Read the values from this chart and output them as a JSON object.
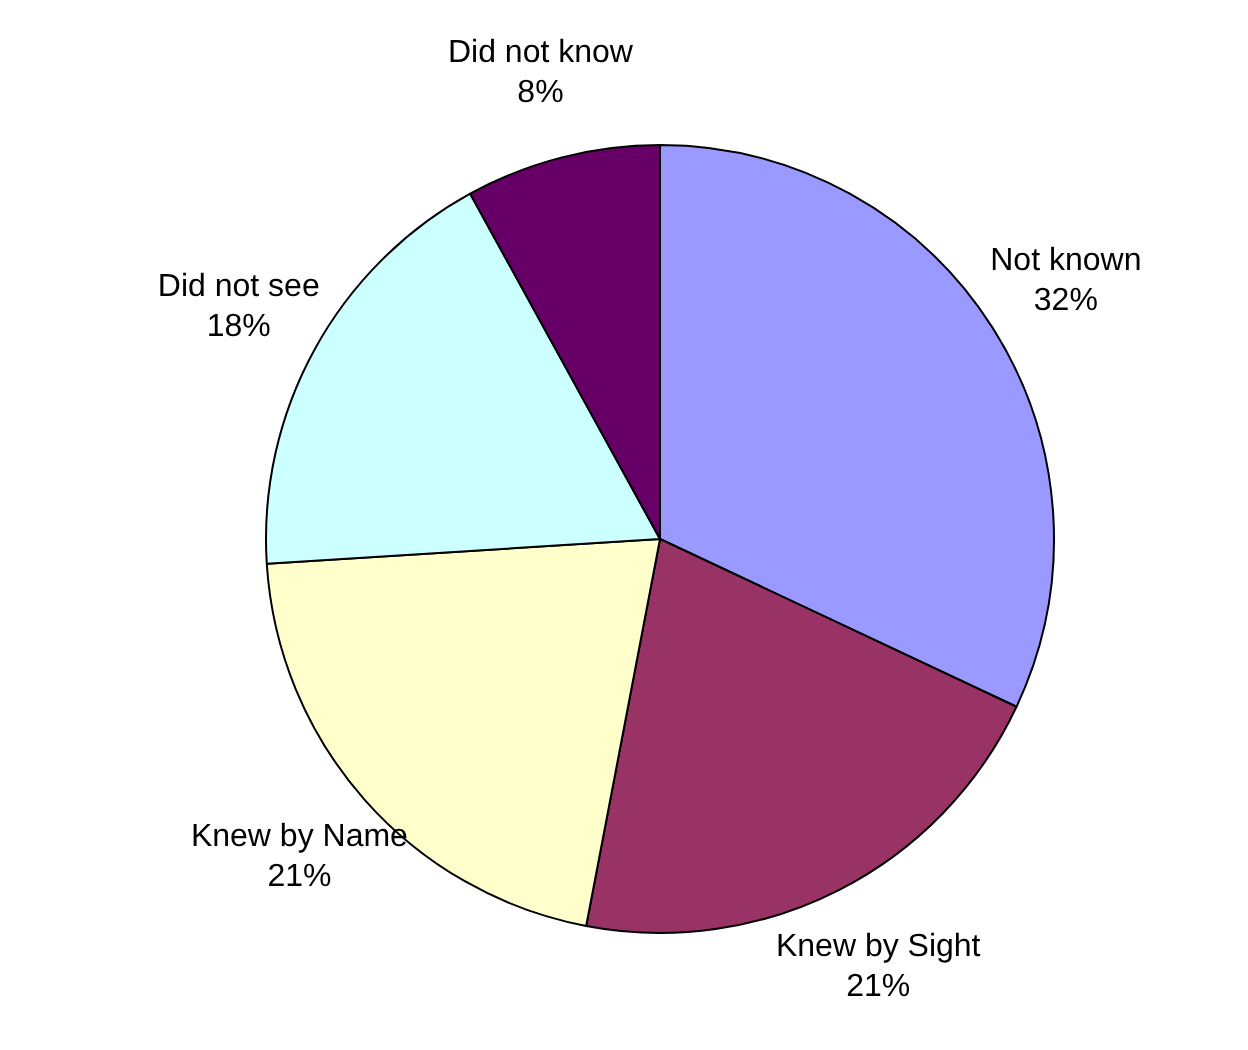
{
  "chart_data": {
    "type": "pie",
    "categories": [
      "Not known",
      "Knew by Sight",
      "Knew by Name",
      "Did not see",
      "Did not know"
    ],
    "values": [
      32,
      21,
      21,
      18,
      8
    ],
    "colors": [
      "#9999ff",
      "#993366",
      "#ffffcc",
      "#ccffff",
      "#660066"
    ],
    "value_labels": [
      "32%",
      "21%",
      "21%",
      "18%",
      "8%"
    ],
    "legend": false
  }
}
